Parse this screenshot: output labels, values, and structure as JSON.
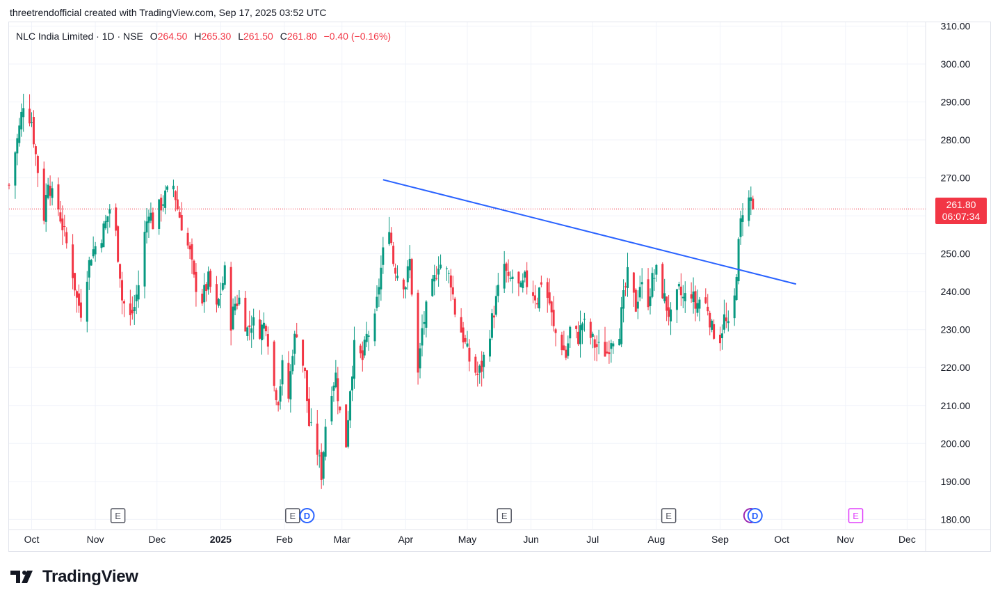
{
  "caption": "threetrendofficial created with TradingView.com, Sep 17, 2025 03:52 UTC",
  "legend": {
    "symbol": "NLC India Limited · 1D · NSE",
    "open_label": "O",
    "open": "264.50",
    "high_label": "H",
    "high": "265.30",
    "low_label": "L",
    "low": "261.50",
    "close_label": "C",
    "close": "261.80",
    "change": "−0.40 (−0.16%)"
  },
  "price_tag": {
    "price": "261.80",
    "countdown": "06:07:34"
  },
  "brand": {
    "name": "TradingView"
  },
  "colors": {
    "up": "#089981",
    "down": "#f23645",
    "trendline": "#2962ff",
    "grid": "#f0f3fa",
    "axis_text": "#131722",
    "earnings": "#787b86",
    "dividend": "#2962ff",
    "future_earnings": "#e040fb"
  },
  "chart_data": {
    "type": "candlestick",
    "y_axis": {
      "ticks": [
        "180.00",
        "190.00",
        "200.00",
        "210.00",
        "220.00",
        "230.00",
        "240.00",
        "250.00",
        "260.00",
        "270.00",
        "280.00",
        "290.00",
        "300.00",
        "310.00"
      ],
      "range": [
        177.5,
        311
      ]
    },
    "x_axis": {
      "ticks": [
        {
          "label": "Oct",
          "date": "2024-10-01"
        },
        {
          "label": "Nov",
          "date": "2024-11-01"
        },
        {
          "label": "Dec",
          "date": "2024-12-01"
        },
        {
          "label": "2025",
          "date": "2025-01-01",
          "bold": true
        },
        {
          "label": "Feb",
          "date": "2025-02-01"
        },
        {
          "label": "Mar",
          "date": "2025-03-01"
        },
        {
          "label": "Apr",
          "date": "2025-04-01"
        },
        {
          "label": "May",
          "date": "2025-05-01"
        },
        {
          "label": "Jun",
          "date": "2025-06-01"
        },
        {
          "label": "Jul",
          "date": "2025-07-01"
        },
        {
          "label": "Aug",
          "date": "2025-08-01"
        },
        {
          "label": "Sep",
          "date": "2025-09-01"
        },
        {
          "label": "Oct",
          "date": "2025-10-01"
        },
        {
          "label": "Nov",
          "date": "2025-11-01"
        },
        {
          "label": "Dec",
          "date": "2025-12-01"
        }
      ],
      "range": [
        "2024-09-20",
        "2025-12-10"
      ]
    },
    "trendline": {
      "start": {
        "date": "2025-03-21",
        "price": 269.5
      },
      "end": {
        "date": "2025-10-08",
        "price": 242
      }
    },
    "last_price": 261.8,
    "events": [
      {
        "label": "E",
        "type": "earnings",
        "date": "2024-11-12"
      },
      {
        "label": "E",
        "type": "earnings",
        "date": "2025-02-05"
      },
      {
        "label": "D",
        "type": "dividend",
        "date": "2025-02-12"
      },
      {
        "label": "E",
        "type": "earnings",
        "date": "2025-05-19"
      },
      {
        "label": "E",
        "type": "earnings",
        "date": "2025-08-07"
      },
      {
        "label": "",
        "type": "earnings-past",
        "date": "2025-09-16"
      },
      {
        "label": "D",
        "type": "dividend",
        "date": "2025-09-18"
      },
      {
        "label": "E",
        "type": "earnings-future",
        "date": "2025-11-06"
      }
    ],
    "waypoints": [
      [
        "2024-09-20",
        268
      ],
      [
        "2024-09-25",
        283
      ],
      [
        "2024-09-27",
        290
      ],
      [
        "2024-10-01",
        285
      ],
      [
        "2024-10-03",
        276
      ],
      [
        "2024-10-07",
        260
      ],
      [
        "2024-10-09",
        270
      ],
      [
        "2024-10-11",
        265
      ],
      [
        "2024-10-14",
        262
      ],
      [
        "2024-10-17",
        255
      ],
      [
        "2024-10-21",
        245
      ],
      [
        "2024-10-23",
        238
      ],
      [
        "2024-10-25",
        235
      ],
      [
        "2024-10-28",
        245
      ],
      [
        "2024-10-30",
        250
      ],
      [
        "2024-11-04",
        255
      ],
      [
        "2024-11-06",
        258
      ],
      [
        "2024-11-08",
        262
      ],
      [
        "2024-11-11",
        255
      ],
      [
        "2024-11-13",
        245
      ],
      [
        "2024-11-14",
        238
      ],
      [
        "2024-11-18",
        233
      ],
      [
        "2024-11-20",
        236
      ],
      [
        "2024-11-22",
        242
      ],
      [
        "2024-11-25",
        255
      ],
      [
        "2024-11-27",
        262
      ],
      [
        "2024-11-29",
        258
      ],
      [
        "2024-12-02",
        262
      ],
      [
        "2024-12-05",
        265
      ],
      [
        "2024-12-09",
        268
      ],
      [
        "2024-12-11",
        262
      ],
      [
        "2024-12-13",
        258
      ],
      [
        "2024-12-17",
        250
      ],
      [
        "2024-12-19",
        243
      ],
      [
        "2024-12-23",
        238
      ],
      [
        "2024-12-26",
        243
      ],
      [
        "2024-12-30",
        235
      ],
      [
        "2025-01-01",
        240
      ],
      [
        "2025-01-03",
        245
      ],
      [
        "2025-01-06",
        232
      ],
      [
        "2025-01-08",
        237
      ],
      [
        "2025-01-10",
        238
      ],
      [
        "2025-01-14",
        230
      ],
      [
        "2025-01-16",
        232
      ],
      [
        "2025-01-20",
        230
      ],
      [
        "2025-01-23",
        232
      ],
      [
        "2025-01-27",
        215
      ],
      [
        "2025-01-29",
        212
      ],
      [
        "2025-01-31",
        220
      ],
      [
        "2025-02-03",
        212
      ],
      [
        "2025-02-05",
        225
      ],
      [
        "2025-02-07",
        230
      ],
      [
        "2025-02-11",
        218
      ],
      [
        "2025-02-13",
        205
      ],
      [
        "2025-02-17",
        198
      ],
      [
        "2025-02-19",
        192
      ],
      [
        "2025-02-21",
        205
      ],
      [
        "2025-02-24",
        215
      ],
      [
        "2025-02-26",
        218
      ],
      [
        "2025-02-28",
        208
      ],
      [
        "2025-03-03",
        200
      ],
      [
        "2025-03-05",
        215
      ],
      [
        "2025-03-07",
        225
      ],
      [
        "2025-03-11",
        222
      ],
      [
        "2025-03-13",
        228
      ],
      [
        "2025-03-17",
        232
      ],
      [
        "2025-03-19",
        242
      ],
      [
        "2025-03-21",
        250
      ],
      [
        "2025-03-24",
        258
      ],
      [
        "2025-03-26",
        248
      ],
      [
        "2025-03-28",
        245
      ],
      [
        "2025-04-01",
        242
      ],
      [
        "2025-04-03",
        248
      ],
      [
        "2025-04-07",
        218
      ],
      [
        "2025-04-09",
        230
      ],
      [
        "2025-04-11",
        235
      ],
      [
        "2025-04-15",
        243
      ],
      [
        "2025-04-17",
        248
      ],
      [
        "2025-04-21",
        245
      ],
      [
        "2025-04-23",
        243
      ],
      [
        "2025-04-25",
        235
      ],
      [
        "2025-04-29",
        228
      ],
      [
        "2025-05-02",
        222
      ],
      [
        "2025-05-06",
        218
      ],
      [
        "2025-05-08",
        220
      ],
      [
        "2025-05-12",
        230
      ],
      [
        "2025-05-14",
        235
      ],
      [
        "2025-05-16",
        240
      ],
      [
        "2025-05-19",
        247
      ],
      [
        "2025-05-21",
        242
      ],
      [
        "2025-05-23",
        244
      ],
      [
        "2025-05-27",
        240
      ],
      [
        "2025-05-29",
        243
      ],
      [
        "2025-06-02",
        240
      ],
      [
        "2025-06-04",
        238
      ],
      [
        "2025-06-06",
        243
      ],
      [
        "2025-06-10",
        237
      ],
      [
        "2025-06-12",
        230
      ],
      [
        "2025-06-16",
        226
      ],
      [
        "2025-06-18",
        223
      ],
      [
        "2025-06-20",
        230
      ],
      [
        "2025-06-24",
        228
      ],
      [
        "2025-06-26",
        232
      ],
      [
        "2025-06-30",
        228
      ],
      [
        "2025-07-02",
        226
      ],
      [
        "2025-07-04",
        225
      ],
      [
        "2025-07-08",
        224
      ],
      [
        "2025-07-10",
        228
      ],
      [
        "2025-07-14",
        230
      ],
      [
        "2025-07-16",
        238
      ],
      [
        "2025-07-18",
        244
      ],
      [
        "2025-07-22",
        236
      ],
      [
        "2025-07-24",
        242
      ],
      [
        "2025-07-28",
        238
      ],
      [
        "2025-07-30",
        243
      ],
      [
        "2025-08-01",
        245
      ],
      [
        "2025-08-04",
        240
      ],
      [
        "2025-08-06",
        236
      ],
      [
        "2025-08-08",
        233
      ],
      [
        "2025-08-12",
        240
      ],
      [
        "2025-08-14",
        238
      ],
      [
        "2025-08-18",
        240
      ],
      [
        "2025-08-20",
        236
      ],
      [
        "2025-08-22",
        238
      ],
      [
        "2025-08-26",
        236
      ],
      [
        "2025-08-28",
        230
      ],
      [
        "2025-09-01",
        228
      ],
      [
        "2025-09-03",
        233
      ],
      [
        "2025-09-05",
        230
      ],
      [
        "2025-09-08",
        238
      ],
      [
        "2025-09-09",
        246
      ],
      [
        "2025-09-10",
        252
      ],
      [
        "2025-09-11",
        258
      ],
      [
        "2025-09-12",
        262
      ],
      [
        "2025-09-15",
        264
      ],
      [
        "2025-09-16",
        264.5
      ],
      [
        "2025-09-17",
        261.8
      ]
    ]
  }
}
